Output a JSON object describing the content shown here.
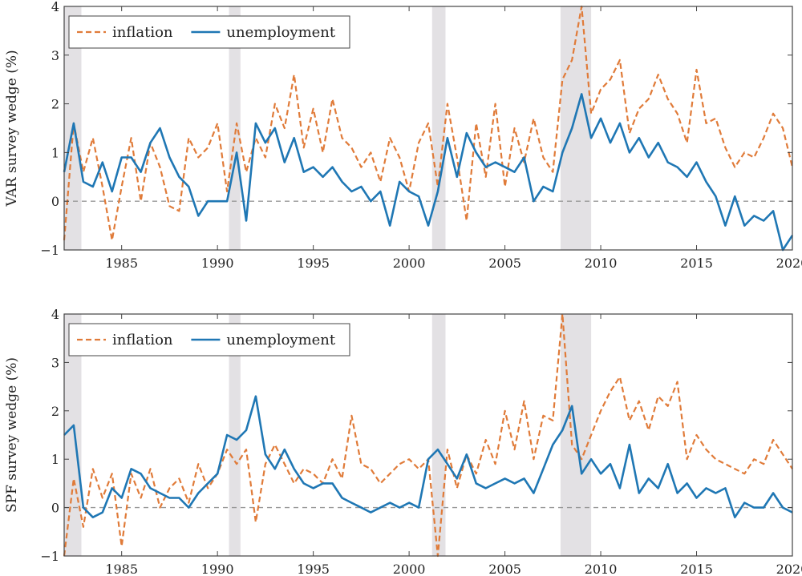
{
  "colors": {
    "inflation": "#e07b39",
    "unemployment": "#1f77b4",
    "recession": "#e3e1e4",
    "zero": "#999999",
    "frame": "#444444"
  },
  "chart_data": [
    {
      "type": "line",
      "ylabel": "VAR survey wedge (%)",
      "xlim": [
        1982,
        2020
      ],
      "ylim": [
        -1,
        4
      ],
      "xticks": [
        "1985",
        "1990",
        "1995",
        "2000",
        "2005",
        "2010",
        "2015",
        "2020"
      ],
      "yticks": [
        "−1",
        "0",
        "1",
        "2",
        "3",
        "4"
      ],
      "recessions": [
        [
          1982.0,
          1982.9
        ],
        [
          1990.6,
          1991.2
        ],
        [
          2001.2,
          2001.9
        ],
        [
          2007.9,
          2009.5
        ]
      ],
      "legend": {
        "position": "top-left",
        "entries": [
          "inflation",
          "unemployment"
        ]
      },
      "series": [
        {
          "name": "inflation",
          "style": "dashed",
          "x": [
            1982.0,
            1982.5,
            1983.0,
            1983.5,
            1984.0,
            1984.5,
            1985.0,
            1985.5,
            1986.0,
            1986.5,
            1987.0,
            1987.5,
            1988.0,
            1988.5,
            1989.0,
            1989.5,
            1990.0,
            1990.5,
            1991.0,
            1991.5,
            1992.0,
            1992.5,
            1993.0,
            1993.5,
            1994.0,
            1994.5,
            1995.0,
            1995.5,
            1996.0,
            1996.5,
            1997.0,
            1997.5,
            1998.0,
            1998.5,
            1999.0,
            1999.5,
            2000.0,
            2000.5,
            2001.0,
            2001.5,
            2002.0,
            2002.5,
            2003.0,
            2003.5,
            2004.0,
            2004.5,
            2005.0,
            2005.5,
            2006.0,
            2006.5,
            2007.0,
            2007.5,
            2008.0,
            2008.5,
            2009.0,
            2009.5,
            2010.0,
            2010.5,
            2011.0,
            2011.5,
            2012.0,
            2012.5,
            2013.0,
            2013.5,
            2014.0,
            2014.5,
            2015.0,
            2015.5,
            2016.0,
            2016.5,
            2017.0,
            2017.5,
            2018.0,
            2018.5,
            2019.0,
            2019.5,
            2020.0
          ],
          "y": [
            -0.8,
            1.6,
            0.6,
            1.3,
            0.3,
            -0.8,
            0.3,
            1.3,
            0.0,
            1.2,
            0.7,
            -0.1,
            -0.2,
            1.3,
            0.9,
            1.1,
            1.6,
            0.2,
            1.6,
            0.6,
            1.3,
            0.9,
            2.0,
            1.5,
            2.6,
            1.1,
            1.9,
            1.0,
            2.1,
            1.3,
            1.1,
            0.7,
            1.0,
            0.4,
            1.3,
            0.9,
            0.2,
            1.2,
            1.6,
            0.3,
            2.0,
            0.9,
            -0.4,
            1.6,
            0.5,
            2.0,
            0.3,
            1.5,
            0.8,
            1.7,
            0.9,
            0.6,
            2.5,
            2.9,
            4.0,
            1.8,
            2.3,
            2.5,
            2.9,
            1.4,
            1.9,
            2.1,
            2.6,
            2.1,
            1.8,
            1.2,
            2.7,
            1.6,
            1.7,
            1.1,
            0.7,
            1.0,
            0.9,
            1.3,
            1.8,
            1.5,
            0.7
          ]
        },
        {
          "name": "unemployment",
          "style": "solid",
          "x": [
            1982.0,
            1982.5,
            1983.0,
            1983.5,
            1984.0,
            1984.5,
            1985.0,
            1985.5,
            1986.0,
            1986.5,
            1987.0,
            1987.5,
            1988.0,
            1988.5,
            1989.0,
            1989.5,
            1990.0,
            1990.5,
            1991.0,
            1991.5,
            1992.0,
            1992.5,
            1993.0,
            1993.5,
            1994.0,
            1994.5,
            1995.0,
            1995.5,
            1996.0,
            1996.5,
            1997.0,
            1997.5,
            1998.0,
            1998.5,
            1999.0,
            1999.5,
            2000.0,
            2000.5,
            2001.0,
            2001.5,
            2002.0,
            2002.5,
            2003.0,
            2003.5,
            2004.0,
            2004.5,
            2005.0,
            2005.5,
            2006.0,
            2006.5,
            2007.0,
            2007.5,
            2008.0,
            2008.5,
            2009.0,
            2009.5,
            2010.0,
            2010.5,
            2011.0,
            2011.5,
            2012.0,
            2012.5,
            2013.0,
            2013.5,
            2014.0,
            2014.5,
            2015.0,
            2015.5,
            2016.0,
            2016.5,
            2017.0,
            2017.5,
            2018.0,
            2018.5,
            2019.0,
            2019.5,
            2020.0
          ],
          "y": [
            0.6,
            1.6,
            0.4,
            0.3,
            0.8,
            0.2,
            0.9,
            0.9,
            0.6,
            1.2,
            1.5,
            0.9,
            0.5,
            0.3,
            -0.3,
            0.0,
            0.0,
            0.0,
            1.0,
            -0.4,
            1.6,
            1.2,
            1.5,
            0.8,
            1.3,
            0.6,
            0.7,
            0.5,
            0.7,
            0.4,
            0.2,
            0.3,
            0.0,
            0.2,
            -0.5,
            0.4,
            0.2,
            0.1,
            -0.5,
            0.2,
            1.3,
            0.5,
            1.4,
            1.0,
            0.7,
            0.8,
            0.7,
            0.6,
            0.9,
            0.0,
            0.3,
            0.2,
            1.0,
            1.5,
            2.2,
            1.3,
            1.7,
            1.2,
            1.6,
            1.0,
            1.3,
            0.9,
            1.2,
            0.8,
            0.7,
            0.5,
            0.8,
            0.4,
            0.1,
            -0.5,
            0.1,
            -0.5,
            -0.3,
            -0.4,
            -0.2,
            -1.0,
            -0.7
          ]
        }
      ]
    },
    {
      "type": "line",
      "ylabel": "SPF survey wedge (%)",
      "xlim": [
        1982,
        2020
      ],
      "ylim": [
        -1,
        4
      ],
      "xticks": [
        "1985",
        "1990",
        "1995",
        "2000",
        "2005",
        "2010",
        "2015",
        "2020"
      ],
      "yticks": [
        "−1",
        "0",
        "1",
        "2",
        "3",
        "4"
      ],
      "recessions": [
        [
          1982.0,
          1982.9
        ],
        [
          1990.6,
          1991.2
        ],
        [
          2001.2,
          2001.9
        ],
        [
          2007.9,
          2009.5
        ]
      ],
      "legend": {
        "position": "top-left",
        "entries": [
          "inflation",
          "unemployment"
        ]
      },
      "series": [
        {
          "name": "inflation",
          "style": "dashed",
          "x": [
            1982.0,
            1982.5,
            1983.0,
            1983.5,
            1984.0,
            1984.5,
            1985.0,
            1985.5,
            1986.0,
            1986.5,
            1987.0,
            1987.5,
            1988.0,
            1988.5,
            1989.0,
            1989.5,
            1990.0,
            1990.5,
            1991.0,
            1991.5,
            1992.0,
            1992.5,
            1993.0,
            1993.5,
            1994.0,
            1994.5,
            1995.0,
            1995.5,
            1996.0,
            1996.5,
            1997.0,
            1997.5,
            1998.0,
            1998.5,
            1999.0,
            1999.5,
            2000.0,
            2000.5,
            2001.0,
            2001.5,
            2002.0,
            2002.5,
            2003.0,
            2003.5,
            2004.0,
            2004.5,
            2005.0,
            2005.5,
            2006.0,
            2006.5,
            2007.0,
            2007.5,
            2008.0,
            2008.5,
            2009.0,
            2009.5,
            2010.0,
            2010.5,
            2011.0,
            2011.5,
            2012.0,
            2012.5,
            2013.0,
            2013.5,
            2014.0,
            2014.5,
            2015.0,
            2015.5,
            2016.0,
            2016.5,
            2017.0,
            2017.5,
            2018.0,
            2018.5,
            2019.0,
            2019.5,
            2020.0
          ],
          "y": [
            -1.0,
            0.6,
            -0.4,
            0.8,
            0.2,
            0.7,
            -0.8,
            0.7,
            0.2,
            0.8,
            0.0,
            0.4,
            0.6,
            0.1,
            0.9,
            0.4,
            0.7,
            1.2,
            0.9,
            1.2,
            -0.3,
            0.9,
            1.3,
            0.9,
            0.5,
            0.8,
            0.7,
            0.5,
            1.0,
            0.6,
            1.9,
            0.9,
            0.8,
            0.5,
            0.7,
            0.9,
            1.0,
            0.8,
            1.0,
            -1.0,
            1.2,
            0.4,
            1.1,
            0.7,
            1.4,
            0.9,
            2.0,
            1.2,
            2.2,
            1.0,
            1.9,
            1.8,
            4.0,
            1.3,
            1.0,
            1.5,
            2.0,
            2.4,
            2.7,
            1.8,
            2.2,
            1.6,
            2.3,
            2.1,
            2.6,
            1.0,
            1.5,
            1.2,
            1.0,
            0.9,
            0.8,
            0.7,
            1.0,
            0.9,
            1.4,
            1.1,
            0.8
          ]
        },
        {
          "name": "unemployment",
          "style": "solid",
          "x": [
            1982.0,
            1982.5,
            1983.0,
            1983.5,
            1984.0,
            1984.5,
            1985.0,
            1985.5,
            1986.0,
            1986.5,
            1987.0,
            1987.5,
            1988.0,
            1988.5,
            1989.0,
            1989.5,
            1990.0,
            1990.5,
            1991.0,
            1991.5,
            1992.0,
            1992.5,
            1993.0,
            1993.5,
            1994.0,
            1994.5,
            1995.0,
            1995.5,
            1996.0,
            1996.5,
            1997.0,
            1997.5,
            1998.0,
            1998.5,
            1999.0,
            1999.5,
            2000.0,
            2000.5,
            2001.0,
            2001.5,
            2002.0,
            2002.5,
            2003.0,
            2003.5,
            2004.0,
            2004.5,
            2005.0,
            2005.5,
            2006.0,
            2006.5,
            2007.0,
            2007.5,
            2008.0,
            2008.5,
            2009.0,
            2009.5,
            2010.0,
            2010.5,
            2011.0,
            2011.5,
            2012.0,
            2012.5,
            2013.0,
            2013.5,
            2014.0,
            2014.5,
            2015.0,
            2015.5,
            2016.0,
            2016.5,
            2017.0,
            2017.5,
            2018.0,
            2018.5,
            2019.0,
            2019.5,
            2020.0
          ],
          "y": [
            1.5,
            1.7,
            0.0,
            -0.2,
            -0.1,
            0.4,
            0.2,
            0.8,
            0.7,
            0.4,
            0.3,
            0.2,
            0.2,
            0.0,
            0.3,
            0.5,
            0.7,
            1.5,
            1.4,
            1.6,
            2.3,
            1.1,
            0.8,
            1.2,
            0.8,
            0.5,
            0.4,
            0.5,
            0.5,
            0.2,
            0.1,
            0.0,
            -0.1,
            0.0,
            0.1,
            0.0,
            0.1,
            0.0,
            1.0,
            1.2,
            0.9,
            0.6,
            1.1,
            0.5,
            0.4,
            0.5,
            0.6,
            0.5,
            0.6,
            0.3,
            0.8,
            1.3,
            1.6,
            2.1,
            0.7,
            1.0,
            0.7,
            0.9,
            0.4,
            1.3,
            0.3,
            0.6,
            0.4,
            0.9,
            0.3,
            0.5,
            0.2,
            0.4,
            0.3,
            0.4,
            -0.2,
            0.1,
            0.0,
            0.0,
            0.3,
            0.0,
            -0.1
          ]
        }
      ]
    }
  ]
}
